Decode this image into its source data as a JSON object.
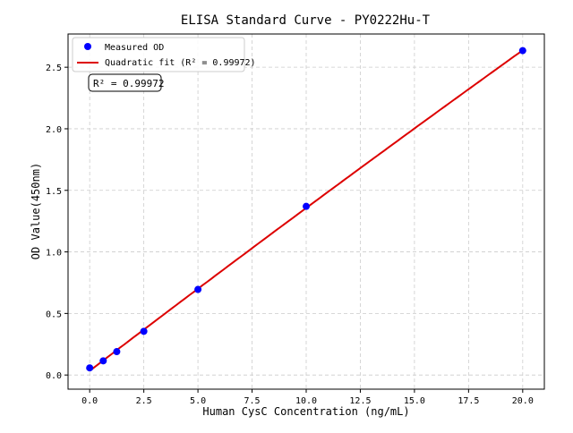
{
  "chart_data": {
    "type": "scatter",
    "title": "ELISA Standard Curve - PY0222Hu-T",
    "xlabel": "Human CysC Concentration (ng/mL)",
    "ylabel": "OD Value(450nm)",
    "xlim": [
      -1,
      21
    ],
    "ylim": [
      -0.115,
      2.77
    ],
    "xticks": [
      0,
      2.5,
      5,
      7.5,
      10,
      12.5,
      15,
      17.5,
      20
    ],
    "xtick_labels": [
      "0.0",
      "2.5",
      "5.0",
      "7.5",
      "10.0",
      "12.5",
      "15.0",
      "17.5",
      "20.0"
    ],
    "yticks": [
      0,
      0.5,
      1,
      1.5,
      2,
      2.5
    ],
    "ytick_labels": [
      "0.0",
      "0.5",
      "1.0",
      "1.5",
      "2.0",
      "2.5"
    ],
    "grid": true,
    "legend_placement": "upper-left",
    "series": [
      {
        "name": "Measured OD",
        "kind": "scatter",
        "color": "#0000ff",
        "x": [
          0,
          0.625,
          1.25,
          2.5,
          5,
          10,
          20
        ],
        "y": [
          0.058,
          0.115,
          0.19,
          0.355,
          0.695,
          1.37,
          2.635
        ]
      },
      {
        "name": "Quadratic fit (R² = 0.99972)",
        "kind": "line",
        "color": "#dd0000"
      }
    ],
    "annotation": "R² = 0.99972"
  }
}
